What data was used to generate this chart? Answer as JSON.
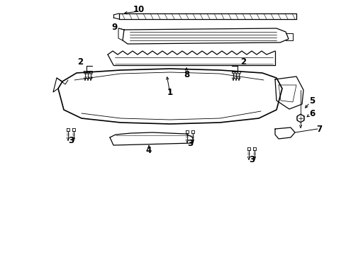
{
  "bg_color": "#ffffff",
  "line_color": "#000000",
  "fig_width": 4.89,
  "fig_height": 3.6,
  "dpi": 100,
  "label_fontsize": 8.5,
  "label_fontweight": "bold"
}
